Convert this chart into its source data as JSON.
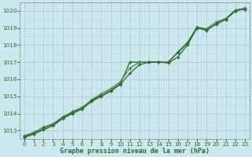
{
  "xlabel": "Graphe pression niveau de la mer (hPa)",
  "ylim": [
    1012.5,
    1020.5
  ],
  "xlim": [
    -0.5,
    23.5
  ],
  "yticks": [
    1013,
    1014,
    1015,
    1016,
    1017,
    1018,
    1019,
    1020
  ],
  "xticks": [
    0,
    1,
    2,
    3,
    4,
    5,
    6,
    7,
    8,
    9,
    10,
    11,
    12,
    13,
    14,
    15,
    16,
    17,
    18,
    19,
    20,
    21,
    22,
    23
  ],
  "background_color": "#cce8ee",
  "grid_major_color": "#b0c8cc",
  "grid_minor_color": "#c8dde2",
  "line_color1": "#2d6a2d",
  "line_color2": "#3d8a3d",
  "line_color3": "#2d6a2d",
  "series1_y": [
    1012.7,
    1012.9,
    1013.2,
    1013.4,
    1013.8,
    1014.1,
    1014.35,
    1014.75,
    1015.05,
    1015.35,
    1015.75,
    1017.0,
    1017.0,
    1017.0,
    1017.0,
    1016.95,
    1017.3,
    1018.0,
    1019.0,
    1018.9,
    1019.2,
    1019.5,
    1020.0,
    1020.1
  ],
  "series2_y": [
    1012.65,
    1012.85,
    1013.1,
    1013.35,
    1013.75,
    1014.05,
    1014.3,
    1014.8,
    1015.15,
    1015.45,
    1015.85,
    1016.65,
    1017.0,
    1017.0,
    1017.0,
    1017.0,
    1017.6,
    1018.15,
    1019.05,
    1018.95,
    1019.35,
    1019.55,
    1020.05,
    1020.15
  ],
  "series3_y": [
    1012.6,
    1012.8,
    1013.05,
    1013.3,
    1013.7,
    1014.0,
    1014.25,
    1014.7,
    1015.0,
    1015.3,
    1015.7,
    1016.35,
    1016.85,
    1017.0,
    1017.0,
    1017.0,
    1017.55,
    1018.1,
    1019.0,
    1018.85,
    1019.25,
    1019.5,
    1020.0,
    1020.1
  ],
  "label_fontsize": 6.0,
  "tick_fontsize": 5.2,
  "tick_color": "#2d6a2d"
}
